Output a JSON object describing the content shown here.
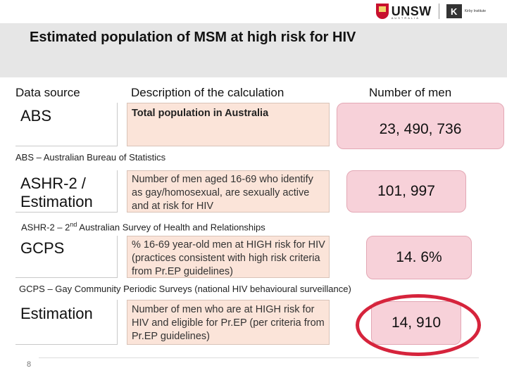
{
  "logo": {
    "brand": "UNSW",
    "brand_sub": "AUSTRALIA",
    "partner_mark": "K",
    "partner": "Kirby Institute"
  },
  "title": "Estimated population of MSM at high risk for HIV",
  "columns": {
    "source": "Data source",
    "description": "Description of the calculation",
    "count": "Number of men"
  },
  "rows": [
    {
      "source": "ABS",
      "description": "Total population in Australia",
      "count": "23, 490, 736",
      "note": "ABS – Australian Bureau of Statistics"
    },
    {
      "source": "ASHR-2 / Estimation",
      "description": "Number of men aged 16-69 who identify as gay/homosexual, are sexually active and at risk for HIV",
      "count": "101, 997",
      "note_pre": "ASHR-2 – 2",
      "note_sup": "nd",
      "note_post": " Australian Survey of Health and Relationships"
    },
    {
      "source": "GCPS",
      "description": "% 16-69 year-old men at HIGH risk for HIV (practices consistent with high risk criteria from Pr.EP guidelines)",
      "count": "14. 6%",
      "note": "GCPS – Gay Community Periodic Surveys (national HIV behavioural surveillance)"
    },
    {
      "source": "Estimation",
      "description": "Number of men who are at HIGH risk for HIV and eligible for Pr.EP (per criteria from Pr.EP guidelines)",
      "count": "14, 910"
    }
  ],
  "page_number": "8",
  "colors": {
    "highlight_ring": "#d6243c",
    "count_box": "#f7d1d9",
    "desc_box": "#fbe4d9"
  }
}
